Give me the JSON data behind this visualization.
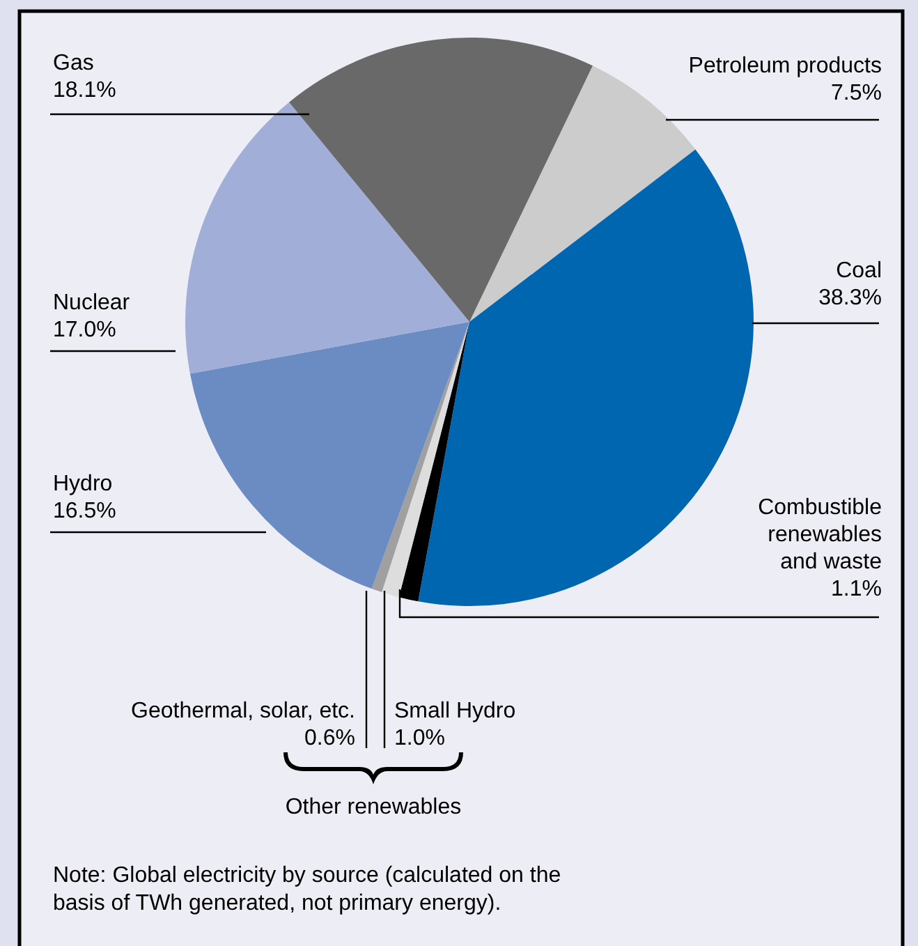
{
  "chart_data": {
    "type": "pie",
    "categories": [
      "Petroleum products",
      "Coal",
      "Combustible renewables and waste",
      "Small Hydro",
      "Geothermal, solar, etc.",
      "Hydro",
      "Nuclear",
      "Gas"
    ],
    "values": [
      7.5,
      38.3,
      1.1,
      1.0,
      0.6,
      16.5,
      17.0,
      18.1
    ],
    "value_labels": [
      "7.5%",
      "38.3%",
      "1.1%",
      "1.0%",
      "0.6%",
      "16.5%",
      "17.0%",
      "18.1%"
    ],
    "colors": [
      "#cccccc",
      "#0066b0",
      "#000000",
      "#dddddd",
      "#a0a0a0",
      "#6b8bc3",
      "#a1aed8",
      "#696969"
    ],
    "annotations": [
      "Other renewables",
      "Note: Global electricity by source (calculated on the basis of TWh generated, not primary energy)."
    ]
  }
}
